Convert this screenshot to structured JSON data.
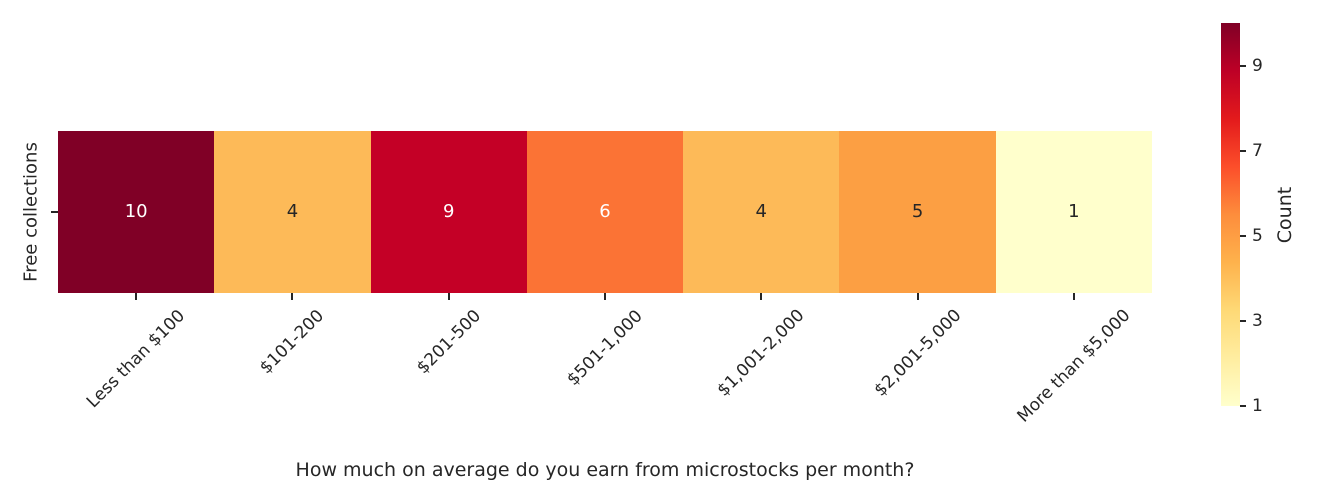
{
  "chart_data": {
    "type": "heatmap",
    "title": "",
    "xlabel": "How much on average do you earn from microstocks per month?",
    "ylabel": "",
    "y_categories": [
      "Free collections"
    ],
    "x_categories": [
      "Less than $100",
      "$101-200",
      "$201-500",
      "$501-1,000",
      "$1,001-2,000",
      "$2,001-5,000",
      "More than $5,000"
    ],
    "values": [
      [
        10,
        4,
        9,
        6,
        4,
        5,
        1
      ]
    ],
    "annotations": true,
    "colormap": "YlOrRd",
    "vmin": 1,
    "vmax": 10,
    "grid": false,
    "colorbar": {
      "label": "Count",
      "position": "right",
      "ticks": [
        9,
        7,
        5,
        3,
        1
      ]
    },
    "cell_colors": [
      [
        "#800026",
        "#fdba58",
        "#c40026",
        "#fb7335",
        "#fdba58",
        "#fc9f43",
        "#ffffcc"
      ]
    ],
    "cell_text_colors": [
      [
        "#ffffff",
        "#262626",
        "#ffffff",
        "#ffffff",
        "#262626",
        "#262626",
        "#262626"
      ]
    ]
  },
  "style": {
    "background": "#ffffff",
    "text_color": "#262626",
    "tick_color": "#262626",
    "colorbar_gradient": [
      "#ffffcc",
      "#ffeda0",
      "#fed976",
      "#feb24c",
      "#fd8d3c",
      "#fc4e2a",
      "#e31a1c",
      "#bd0026",
      "#800026"
    ]
  }
}
